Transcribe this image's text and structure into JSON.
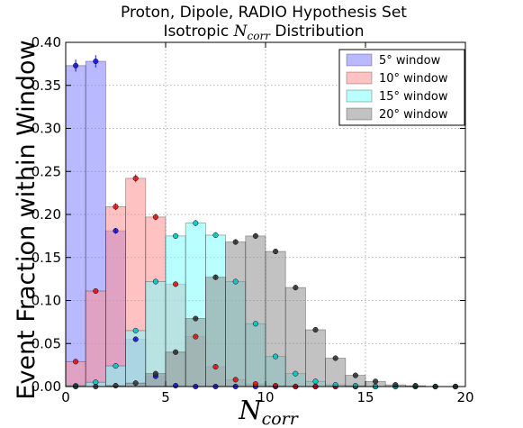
{
  "chart_data": {
    "type": "bar",
    "title_line1": "Proton, Dipole, RADIO Hypothesis Set",
    "title_line2_prefix": "Isotropic ",
    "title_line2_symbol": "N",
    "title_line2_subscript": "corr",
    "title_line2_suffix": " Distribution",
    "xlabel_symbol": "N",
    "xlabel_subscript": "corr",
    "ylabel": "Event Fraction within Window",
    "xlim": [
      0,
      20
    ],
    "ylim": [
      0,
      0.4
    ],
    "xticks": [
      "0",
      "5",
      "10",
      "15",
      "20"
    ],
    "yticks": [
      "0.00",
      "0.05",
      "0.10",
      "0.15",
      "0.20",
      "0.25",
      "0.30",
      "0.35",
      "0.40"
    ],
    "grid": true,
    "legend_position": "top-right",
    "categories": [
      0,
      1,
      2,
      3,
      4,
      5,
      6,
      7,
      8,
      9,
      10,
      11,
      12,
      13,
      14,
      15,
      16,
      17,
      18,
      19
    ],
    "series": [
      {
        "name": "5° window",
        "fill": "#8080ff",
        "marker": "#1010dd",
        "values": [
          0.373,
          0.378,
          0.181,
          0.055,
          0.012,
          0.001,
          0,
          0,
          0,
          0,
          0,
          0,
          0,
          0,
          0,
          0,
          0,
          0,
          0,
          0
        ]
      },
      {
        "name": "10° window",
        "fill": "#ff8f8f",
        "marker": "#e01010",
        "values": [
          0.029,
          0.111,
          0.209,
          0.242,
          0.197,
          0.119,
          0.058,
          0.023,
          0.008,
          0.003,
          0.001,
          0,
          0,
          0,
          0,
          0,
          0,
          0,
          0,
          0
        ]
      },
      {
        "name": "15° window",
        "fill": "#80ffff",
        "marker": "#00c8c8",
        "values": [
          0.001,
          0.005,
          0.024,
          0.065,
          0.122,
          0.175,
          0.19,
          0.176,
          0.122,
          0.073,
          0.035,
          0.015,
          0.006,
          0.002,
          0.001,
          0,
          0,
          0,
          0,
          0
        ]
      },
      {
        "name": "20° window",
        "fill": "#8f8f8f",
        "marker": "#303030",
        "values": [
          0,
          0,
          0.001,
          0.004,
          0.015,
          0.04,
          0.079,
          0.127,
          0.168,
          0.175,
          0.157,
          0.115,
          0.066,
          0.033,
          0.013,
          0.006,
          0.002,
          0.001,
          0,
          0
        ]
      }
    ]
  }
}
